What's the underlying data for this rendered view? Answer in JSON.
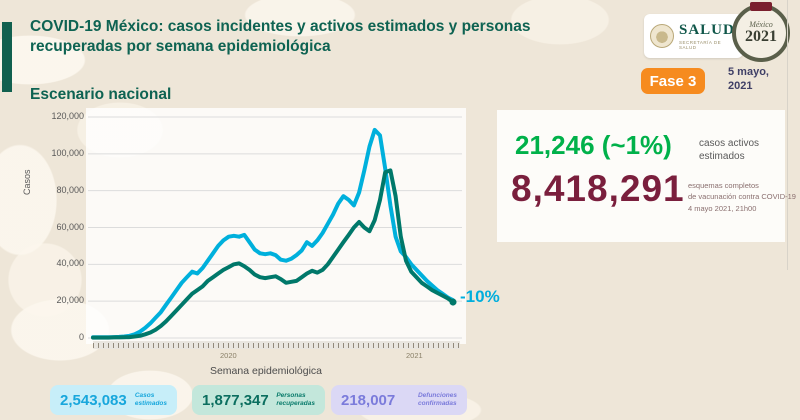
{
  "header": {
    "title_line1": "COVID-19 México: casos incidentes y activos estimados y personas",
    "title_line2": "recuperadas por semana epidemiológica",
    "subtitle": "Escenario nacional",
    "salud_logo": {
      "name": "SALUD",
      "sub": "SECRETARÍA DE SALUD"
    },
    "logo_2021": {
      "top": "México",
      "year": "2021"
    },
    "fase_badge": "Fase 3",
    "date_line1": "5 mayo,",
    "date_line2": "2021"
  },
  "right_stats": {
    "active_cases": {
      "value": "21,246 (~1%)",
      "label_line1": "casos activos",
      "label_line2": "estimados",
      "color": "#00b14a"
    },
    "vaccination": {
      "value": "8,418,291",
      "label_line1": "esquemas completos",
      "label_line2": "de vacunación contra COVID-19",
      "label_line3": "4 mayo 2021, 21h00",
      "color": "#7a1f3d"
    }
  },
  "chart_data": {
    "type": "line",
    "title": "Escenario nacional",
    "ylabel": "Casos",
    "xlabel": "Semana epidemiológica",
    "ylim": [
      0,
      120000
    ],
    "yticks": [
      "0",
      "20,000",
      "40,000",
      "60,000",
      "80,000",
      "100,000",
      "120,000"
    ],
    "grid": "horizontal",
    "x_description": "semanas epidemiológicas: 53 semanas de 2020 y 17 de 2021",
    "x_year_labels": [
      "2020",
      "2021"
    ],
    "series": [
      {
        "name": "Casos estimados (incidentes)",
        "color": "#00b0dc",
        "values": [
          400,
          400,
          400,
          400,
          500,
          600,
          800,
          1200,
          2000,
          3500,
          5500,
          8000,
          11000,
          14000,
          18000,
          22000,
          26000,
          30000,
          33000,
          36000,
          35000,
          38000,
          42000,
          46000,
          50000,
          53000,
          55000,
          55500,
          55000,
          56000,
          52000,
          48000,
          46000,
          45500,
          46000,
          45000,
          42500,
          42000,
          43000,
          45000,
          47500,
          52000,
          50000,
          53000,
          57000,
          62000,
          67000,
          73000,
          77000,
          75000,
          72000,
          79000,
          91000,
          104000,
          113000,
          110000,
          92000,
          72000,
          55000,
          47000,
          44000,
          40000,
          37000,
          34000,
          31000,
          28500,
          26000,
          24000,
          22000,
          20500
        ]
      },
      {
        "name": "Personas recuperadas",
        "color": "#00786a",
        "values": [
          200,
          200,
          200,
          200,
          300,
          300,
          400,
          500,
          800,
          1200,
          2000,
          3000,
          4500,
          6500,
          9000,
          12000,
          15000,
          18000,
          21000,
          24000,
          26000,
          28000,
          31000,
          33000,
          35000,
          37000,
          38500,
          40000,
          40500,
          39000,
          37000,
          34500,
          33000,
          32500,
          33000,
          33500,
          32000,
          30000,
          30500,
          31000,
          33000,
          35000,
          36500,
          35500,
          37000,
          40000,
          44000,
          48000,
          52000,
          56000,
          60000,
          63000,
          60000,
          58000,
          64000,
          75000,
          90000,
          91000,
          77000,
          55000,
          42000,
          36000,
          33000,
          30000,
          28000,
          26000,
          24500,
          23000,
          21500,
          19500
        ]
      }
    ],
    "annotation": {
      "text": "-10%",
      "color": "#00aedd",
      "position": "end-of-line"
    },
    "legend_position": "none"
  },
  "footer_boxes": [
    {
      "value": "2,543,083",
      "label_line1": "Casos",
      "label_line2": "estimados",
      "bg": "#c7eef9",
      "color": "#18a7dc"
    },
    {
      "value": "1,877,347",
      "label_line1": "Personas",
      "label_line2": "recuperadas",
      "bg": "#c3e7db",
      "color": "#0b6e5f"
    },
    {
      "value": "218,007",
      "label_line1": "Defunciones",
      "label_line2": "confirmadas",
      "bg": "#dbd8f5",
      "color": "#7b7bdb"
    }
  ]
}
